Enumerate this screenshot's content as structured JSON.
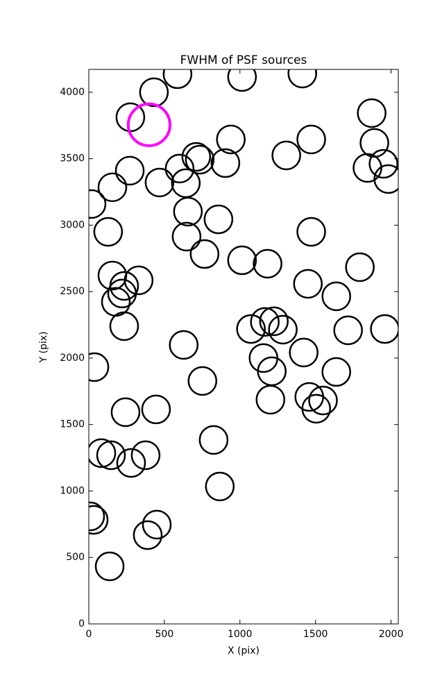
{
  "chart_data": {
    "type": "scatter",
    "title": "FWHM of PSF sources",
    "x_label": "X (pix)",
    "y_label": "Y (pix)",
    "xlim": [
      0,
      2048
    ],
    "ylim": [
      0,
      4172
    ],
    "xticks": [
      0,
      500,
      1000,
      1500,
      2000
    ],
    "yticks": [
      0,
      500,
      1000,
      1500,
      2000,
      2500,
      3000,
      3500,
      4000
    ],
    "series": [
      {
        "color": "#000000",
        "radius": 92,
        "x": [
          431,
          587,
          1014,
          1413,
          275,
          1872,
          940,
          1472,
          1890,
          711,
          734,
          1307,
          904,
          271,
          601,
          1844,
          1950,
          1982,
          468,
          642,
          156,
          18,
          656,
          858,
          128,
          1472,
          647,
          766,
          1014,
          1183,
          1794,
          156,
          330,
          234,
          1450,
          220,
          1638,
          179,
          1165,
          1225,
          1073,
          1284,
          1716,
          1959,
          234,
          628,
          37,
          1422,
          1156,
          1211,
          1638,
          752,
          1202,
          1459,
          1505,
          1550,
          243,
          445,
          826,
          83,
          147,
          280,
          376,
          867,
          9,
          32,
          450,
          390,
          138
        ],
        "values": [
          4000,
          4136,
          4115,
          4141,
          3812,
          3843,
          3645,
          3645,
          3619,
          3514,
          3493,
          3525,
          3467,
          3410,
          3426,
          3431,
          3462,
          3347,
          3321,
          3316,
          3285,
          3159,
          3102,
          3044,
          2950,
          2950,
          2914,
          2783,
          2736,
          2710,
          2684,
          2621,
          2585,
          2543,
          2559,
          2486,
          2465,
          2423,
          2272,
          2277,
          2219,
          2214,
          2209,
          2219,
          2240,
          2099,
          1932,
          2042,
          2000,
          1901,
          1896,
          1828,
          1687,
          1708,
          1619,
          1681,
          1593,
          1614,
          1384,
          1285,
          1269,
          1211,
          1269,
          1034,
          809,
          783,
          747,
          668,
          433
        ]
      },
      {
        "color": "#ff00ff",
        "radius": 138,
        "x": [
          399
        ],
        "values": [
          3755
        ]
      }
    ]
  }
}
